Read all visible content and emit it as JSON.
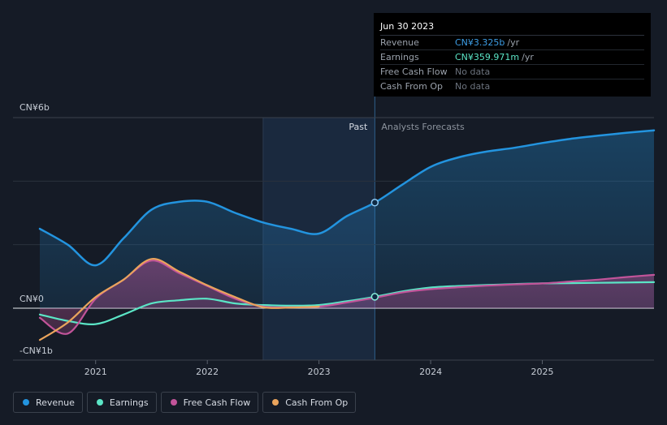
{
  "colors": {
    "revenue": "#2394df",
    "earnings": "#5be5c6",
    "free_cash_flow": "#c2549a",
    "cash_from_op": "#eaa45c",
    "background": "#151b26"
  },
  "tooltip": {
    "date": "Jun 30 2023",
    "rows": [
      {
        "label": "Revenue",
        "value": "CN¥3.325b",
        "unit": "/yr",
        "color": "#3d9ee6"
      },
      {
        "label": "Earnings",
        "value": "CN¥359.971m",
        "unit": "/yr",
        "color": "#5be5c6"
      },
      {
        "label": "Free Cash Flow",
        "value": "No data",
        "unit": "",
        "color": "#6c737e"
      },
      {
        "label": "Cash From Op",
        "value": "No data",
        "unit": "",
        "color": "#6c737e"
      }
    ]
  },
  "legend": [
    {
      "label": "Revenue",
      "color": "#2394df"
    },
    {
      "label": "Earnings",
      "color": "#5be5c6"
    },
    {
      "label": "Free Cash Flow",
      "color": "#c2549a"
    },
    {
      "label": "Cash From Op",
      "color": "#eaa45c"
    }
  ],
  "chart_data": {
    "type": "line",
    "title": "",
    "units": "CN¥ billions",
    "y_axis": {
      "min": -1,
      "max": 6,
      "labels": [
        "CN¥6b",
        "CN¥0",
        "-CN¥1b"
      ]
    },
    "x_axis": {
      "min": 2020.5,
      "max": 2026.0,
      "ticks": [
        2021,
        2022,
        2023,
        2024,
        2025
      ],
      "tick_labels": [
        "2021",
        "2022",
        "2023",
        "2024",
        "2025"
      ]
    },
    "divider_labels": {
      "past": "Past",
      "forecast": "Analysts Forecasts"
    },
    "present_date": 2023.5,
    "past_region_start": 2022.5,
    "highlight": {
      "x": 2023.5,
      "revenue": 3.325,
      "earnings": 0.36
    },
    "series": [
      {
        "name": "Revenue",
        "key": "revenue",
        "area": true,
        "x": [
          2020.5,
          2020.75,
          2021.0,
          2021.25,
          2021.5,
          2021.75,
          2022.0,
          2022.25,
          2022.5,
          2022.75,
          2023.0,
          2023.25,
          2023.5,
          2023.75,
          2024.0,
          2024.25,
          2024.5,
          2024.75,
          2025.0,
          2025.25,
          2025.5,
          2025.75,
          2026.0
        ],
        "values": [
          2.5,
          2.0,
          1.35,
          2.2,
          3.1,
          3.35,
          3.35,
          3.0,
          2.7,
          2.5,
          2.35,
          2.9,
          3.325,
          3.9,
          4.45,
          4.75,
          4.93,
          5.05,
          5.2,
          5.33,
          5.43,
          5.52,
          5.6
        ]
      },
      {
        "name": "Earnings",
        "key": "earnings",
        "area": false,
        "x": [
          2020.5,
          2020.75,
          2021.0,
          2021.25,
          2021.5,
          2021.75,
          2022.0,
          2022.25,
          2022.5,
          2022.75,
          2023.0,
          2023.25,
          2023.5,
          2023.75,
          2024.0,
          2024.25,
          2024.5,
          2024.75,
          2025.0,
          2025.25,
          2025.5,
          2025.75,
          2026.0
        ],
        "values": [
          -0.2,
          -0.4,
          -0.5,
          -0.2,
          0.15,
          0.25,
          0.3,
          0.15,
          0.1,
          0.08,
          0.1,
          0.22,
          0.36,
          0.53,
          0.65,
          0.7,
          0.73,
          0.76,
          0.78,
          0.79,
          0.8,
          0.81,
          0.82
        ]
      },
      {
        "name": "Free Cash Flow",
        "key": "free_cash_flow",
        "area": true,
        "x": [
          2020.5,
          2020.75,
          2021.0,
          2021.25,
          2021.5,
          2021.75,
          2022.0,
          2022.25,
          2022.5,
          2022.75,
          2023.0,
          2023.25,
          2023.5,
          2023.75,
          2024.0,
          2024.25,
          2024.5,
          2024.75,
          2025.0,
          2025.25,
          2025.5,
          2025.75,
          2026.0
        ],
        "values": [
          -0.3,
          -0.8,
          0.3,
          0.9,
          1.5,
          1.1,
          0.7,
          0.3,
          0.05,
          0.03,
          0.05,
          0.18,
          0.33,
          0.5,
          0.6,
          0.66,
          0.71,
          0.75,
          0.78,
          0.84,
          0.9,
          0.98,
          1.05
        ]
      },
      {
        "name": "Cash From Op",
        "key": "cash_from_op",
        "area": false,
        "x": [
          2020.5,
          2020.75,
          2021.0,
          2021.25,
          2021.5,
          2021.75,
          2022.0,
          2022.25,
          2022.5,
          2022.75,
          2023.0
        ],
        "values": [
          -1.0,
          -0.45,
          0.35,
          0.9,
          1.55,
          1.15,
          0.72,
          0.35,
          0.03,
          0.02,
          0.05
        ]
      }
    ]
  }
}
